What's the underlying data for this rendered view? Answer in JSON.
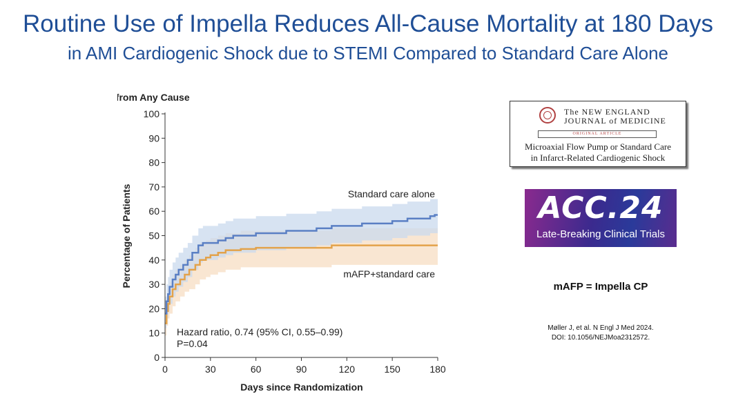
{
  "slide": {
    "title": "Routine Use of Impella Reduces All-Cause Mortality at 180 Days",
    "subtitle": "in AMI Cardiogenic Shock due to STEMI Compared to Standard Care Alone"
  },
  "nejm_card": {
    "journal_line1": "The NEW ENGLAND",
    "journal_line2": "JOURNAL of MEDICINE",
    "section": "ORIGINAL ARTICLE",
    "article_line1": "Microaxial Flow Pump or Standard Care",
    "article_line2": "in Infarct-Related Cardiogenic Shock"
  },
  "acc_badge": {
    "logo": "ACC.24",
    "subtitle": "Late-Breaking Clinical Trials"
  },
  "note": "mAFP = Impella CP",
  "citation": {
    "line1": "Møller J, et al. N Engl J Med 2024.",
    "line2": "DOI: 10.1056/NEJMoa2312572."
  },
  "colors": {
    "title": "#1f4e96",
    "standard_care_line": "#5a7fc4",
    "standard_care_band": "#c9d9ee",
    "mafp_line": "#e3a24a",
    "mafp_band": "#f6dcbf"
  },
  "chart_data": {
    "type": "line",
    "title": "Death from Any Cause",
    "xlabel": "Days since Randomization",
    "ylabel": "Percentage of Patients",
    "xlim": [
      0,
      180
    ],
    "ylim": [
      0,
      100
    ],
    "xticks": [
      0,
      30,
      60,
      90,
      120,
      150,
      180
    ],
    "yticks": [
      0,
      10,
      20,
      30,
      40,
      50,
      60,
      70,
      80,
      90,
      100
    ],
    "grid": false,
    "series": [
      {
        "name": "Standard care alone",
        "x": [
          0,
          1,
          2,
          3,
          5,
          7,
          9,
          12,
          15,
          18,
          22,
          25,
          30,
          35,
          40,
          45,
          50,
          60,
          70,
          80,
          90,
          100,
          110,
          120,
          130,
          140,
          150,
          160,
          170,
          175,
          178,
          180
        ],
        "y": [
          18,
          23,
          26,
          29,
          32,
          34,
          36,
          38,
          40,
          43,
          46,
          47,
          47,
          48,
          49,
          50,
          50,
          51,
          51,
          52,
          52,
          53,
          54,
          54,
          55,
          55,
          56,
          57,
          57,
          58,
          58.5,
          58.5
        ],
        "ci_lower": [
          12,
          16,
          19,
          22,
          25,
          27,
          29,
          31,
          33,
          36,
          39,
          40,
          40,
          41,
          42,
          43,
          43,
          44,
          44,
          45,
          45,
          46,
          47,
          47,
          48,
          48,
          49,
          50,
          50,
          51,
          51,
          51
        ],
        "ci_upper": [
          25,
          30,
          33,
          36,
          39,
          41,
          43,
          45,
          47,
          50,
          53,
          54,
          54,
          55,
          56,
          57,
          57,
          58,
          58,
          59,
          59,
          60,
          61,
          61,
          62,
          62,
          63,
          64,
          64,
          65,
          65,
          65
        ]
      },
      {
        "name": "mAFP+standard care",
        "x": [
          0,
          1,
          2,
          3,
          5,
          7,
          10,
          13,
          16,
          20,
          23,
          27,
          30,
          35,
          40,
          45,
          50,
          60,
          70,
          80,
          90,
          100,
          110,
          120,
          180
        ],
        "y": [
          14,
          19,
          22,
          25,
          28,
          30,
          32,
          34,
          36,
          38,
          40,
          41,
          42,
          43,
          44,
          44,
          44.5,
          45,
          45,
          45,
          45,
          45,
          46,
          46,
          46
        ],
        "ci_lower": [
          9,
          13,
          16,
          18,
          21,
          23,
          25,
          27,
          28,
          30,
          32,
          33,
          34,
          35,
          36,
          36,
          37,
          37,
          37,
          37,
          37,
          37,
          38,
          38,
          38
        ],
        "ci_upper": [
          19,
          24,
          28,
          31,
          34,
          36,
          38,
          40,
          42,
          45,
          47,
          48,
          49,
          50,
          51,
          51,
          52,
          52,
          52,
          52,
          52,
          52,
          53,
          53,
          53
        ]
      }
    ],
    "annotations": [
      "Hazard ratio, 0.74 (95% CI, 0.55–0.99)",
      "P=0.04"
    ]
  }
}
